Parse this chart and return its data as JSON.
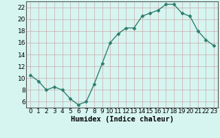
{
  "x": [
    0,
    1,
    2,
    3,
    4,
    5,
    6,
    7,
    8,
    9,
    10,
    11,
    12,
    13,
    14,
    15,
    16,
    17,
    18,
    19,
    20,
    21,
    22,
    23
  ],
  "y": [
    10.5,
    9.5,
    8.0,
    8.5,
    8.0,
    6.5,
    5.5,
    6.0,
    9.0,
    12.5,
    16.0,
    17.5,
    18.5,
    18.5,
    20.5,
    21.0,
    21.5,
    22.5,
    22.5,
    21.0,
    20.5,
    18.0,
    16.5,
    15.5
  ],
  "line_color": "#2e7d6e",
  "marker": "D",
  "marker_size": 2.5,
  "bg_color": "#d6f5f0",
  "grid_color_major": "#c8aaaa",
  "grid_color_minor": "#ddc8c8",
  "xlabel": "Humidex (Indice chaleur)",
  "xlim": [
    -0.5,
    23.5
  ],
  "ylim": [
    5,
    23
  ],
  "yticks": [
    6,
    8,
    10,
    12,
    14,
    16,
    18,
    20,
    22
  ],
  "xticks": [
    0,
    1,
    2,
    3,
    4,
    5,
    6,
    7,
    8,
    9,
    10,
    11,
    12,
    13,
    14,
    15,
    16,
    17,
    18,
    19,
    20,
    21,
    22,
    23
  ],
  "xlabel_fontsize": 7.5,
  "tick_fontsize": 6.5,
  "linewidth": 1.0
}
